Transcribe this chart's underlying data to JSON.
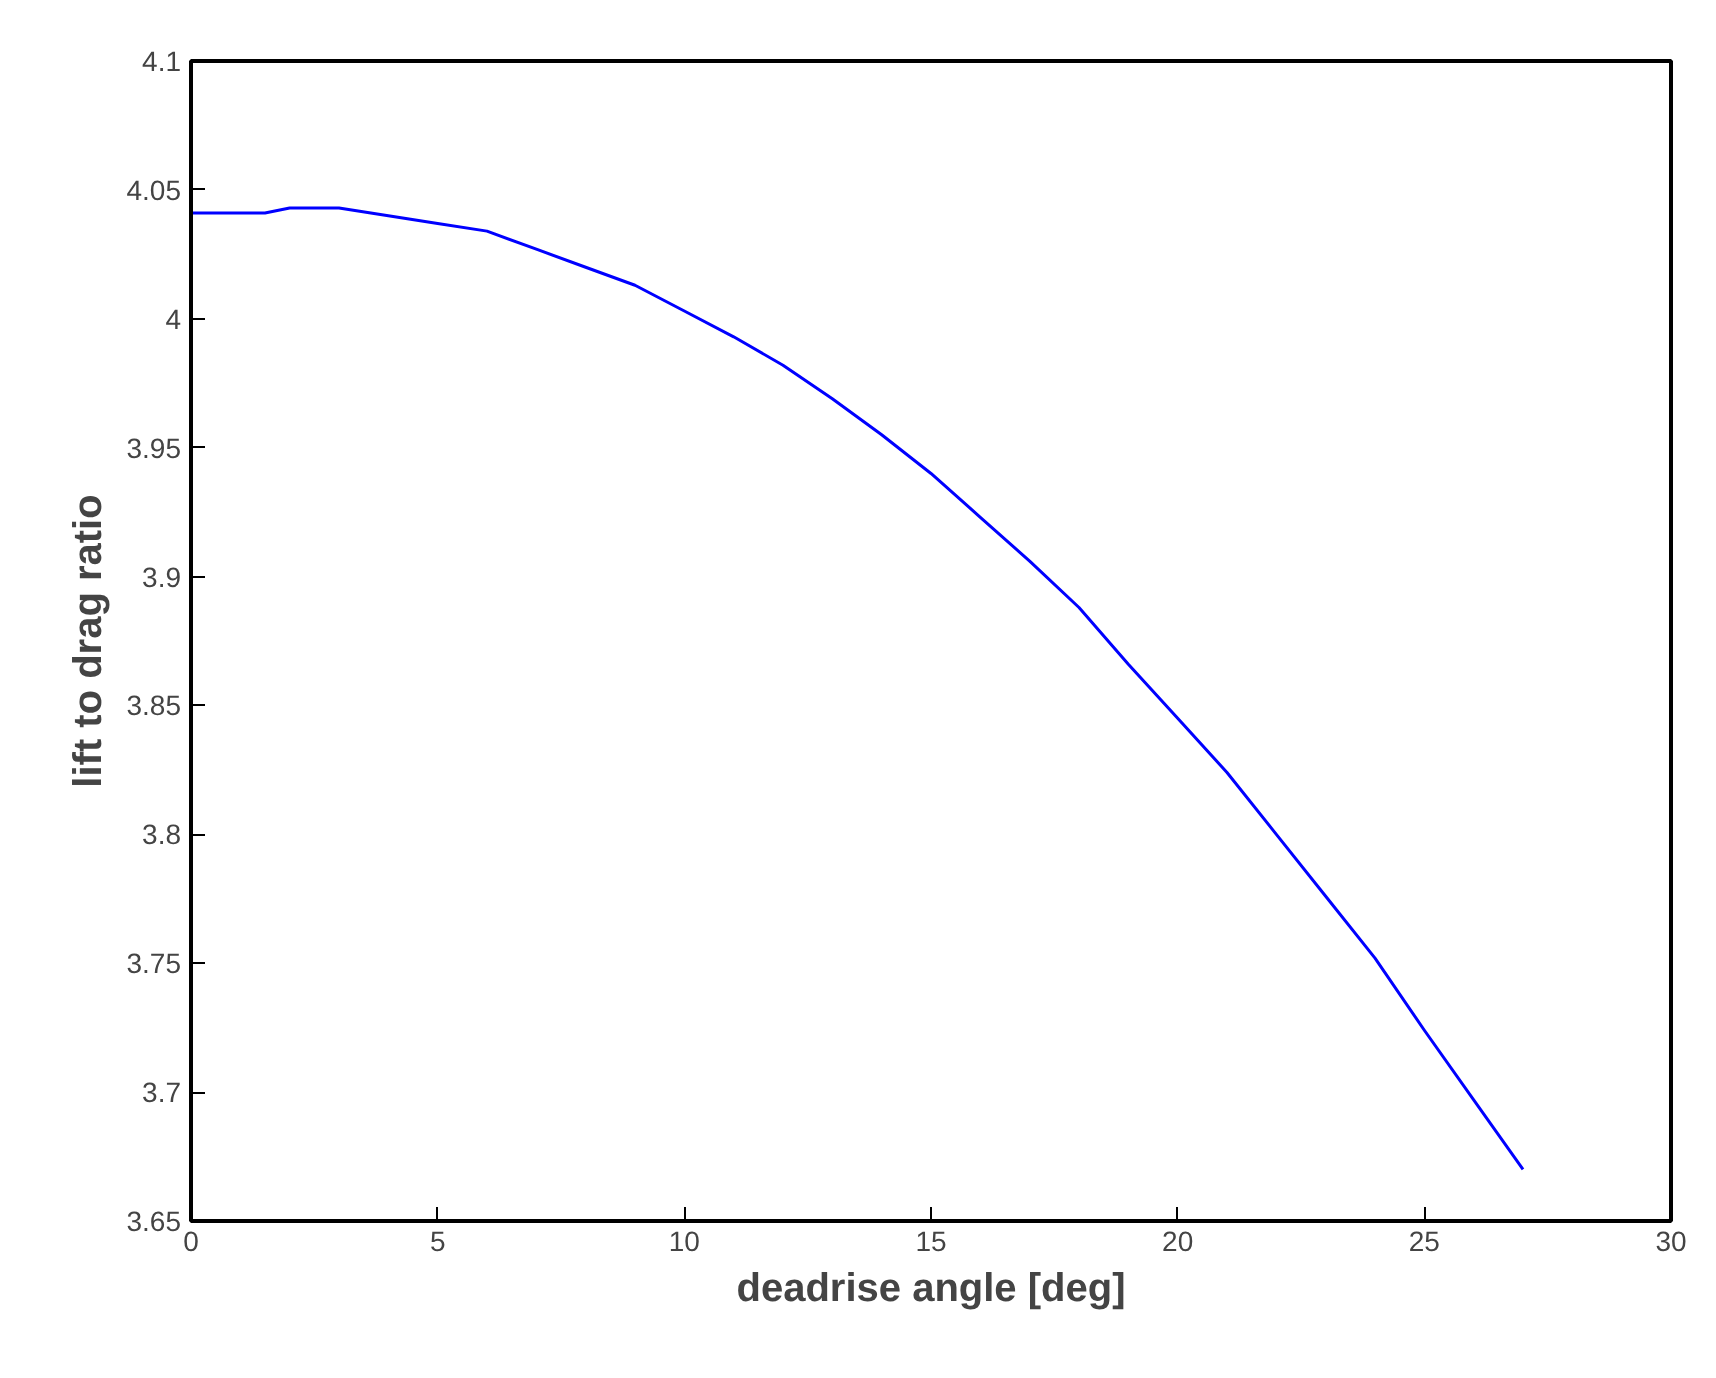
{
  "chart_data": {
    "type": "line",
    "xlabel": "deadrise angle [deg]",
    "ylabel": "lift to drag ratio",
    "x": [
      0,
      1.5,
      2,
      3,
      4,
      5,
      6,
      7,
      8,
      9,
      10,
      11,
      12,
      13,
      14,
      15,
      16,
      17,
      18,
      19,
      20,
      21,
      22,
      23,
      24,
      25,
      26,
      27
    ],
    "series": [
      {
        "color": "#0000ff",
        "values": [
          4.041,
          4.041,
          4.043,
          4.043,
          4.04,
          4.037,
          4.034,
          4.027,
          4.02,
          4.013,
          4.003,
          3.993,
          3.982,
          3.969,
          3.955,
          3.94,
          3.923,
          3.906,
          3.888,
          3.866,
          3.845,
          3.824,
          3.8,
          3.776,
          3.752,
          3.724,
          3.697,
          3.67
        ]
      }
    ],
    "xlim": [
      0,
      30
    ],
    "xticks": [
      0,
      5,
      10,
      15,
      20,
      25,
      30
    ],
    "ylim": [
      3.65,
      4.1
    ],
    "yticks": [
      3.65,
      3.7,
      3.75,
      3.8,
      3.85,
      3.9,
      3.95,
      4,
      4.05,
      4.1
    ],
    "grid": false,
    "marker": "none",
    "line_style": "solid"
  }
}
